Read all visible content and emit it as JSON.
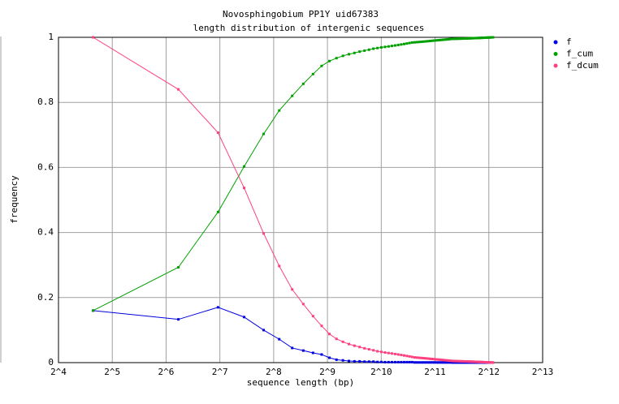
{
  "chart_data": {
    "type": "line",
    "title": "Novosphingobium PP1Y uid67383",
    "subtitle": "length distribution of intergenic sequences",
    "x_label": "sequence length (bp)",
    "y_label": "frequency",
    "log_x": true,
    "log_base": 2,
    "grid": true,
    "legend": "right",
    "markers": true,
    "xlim": [
      16,
      8192
    ],
    "xticks": [
      {
        "value": 16,
        "label": "2^4"
      },
      {
        "value": 32,
        "label": "2^5"
      },
      {
        "value": 64,
        "label": "2^6"
      },
      {
        "value": 128,
        "label": "2^7"
      },
      {
        "value": 256,
        "label": "2^8"
      },
      {
        "value": 512,
        "label": "2^9"
      },
      {
        "value": 1024,
        "label": "2^10"
      },
      {
        "value": 2048,
        "label": "2^11"
      },
      {
        "value": 4096,
        "label": "2^12"
      },
      {
        "value": 8192,
        "label": "2^13"
      }
    ],
    "ylim": [
      0,
      1
    ],
    "yticks": [
      0,
      0.2,
      0.4,
      0.6,
      0.8,
      1
    ],
    "x": [
      25,
      75,
      125,
      175,
      225,
      275,
      325,
      375,
      425,
      475,
      525,
      575,
      625,
      675,
      725,
      775,
      825,
      875,
      925,
      975,
      1025,
      1075,
      1125,
      1175,
      1225,
      1275,
      1325,
      1375,
      1425,
      1475,
      1525,
      1575,
      1625,
      1675,
      1725,
      1775,
      1825,
      1875,
      1925,
      1975,
      2025,
      2075,
      2125,
      2175,
      2225,
      2275,
      2325,
      2375,
      2425,
      2475,
      2525,
      2575,
      2625,
      2675,
      2725,
      2775,
      2825,
      2875,
      2925,
      2975,
      3025,
      3075,
      3125,
      3175,
      3225,
      3275,
      3325,
      3375,
      3425,
      3475,
      3525,
      3575,
      3625,
      3675,
      3725,
      3775,
      3825,
      3875,
      3925,
      3975,
      4025,
      4075,
      4125,
      4175,
      4225,
      4275,
      4325
    ],
    "series": [
      {
        "name": "f",
        "color": "#0000e0",
        "values": [
          0.16,
          0.133,
          0.17,
          0.14,
          0.1,
          0.072,
          0.045,
          0.037,
          0.03,
          0.025,
          0.015,
          0.009,
          0.007,
          0.005,
          0.004,
          0.004,
          0.003,
          0.003,
          0.003,
          0.002,
          0.002,
          0.0015,
          0.0015,
          0.0015,
          0.0015,
          0.0015,
          0.0015,
          0.0015,
          0.0015,
          0.0015,
          0.0015,
          0.0006,
          0.0006,
          0.0006,
          0.0006,
          0.0006,
          0.0006,
          0.0006,
          0.0006,
          0.0006,
          0.0006,
          0.0005,
          0.0005,
          0.0005,
          0.0005,
          0.0005,
          0.0005,
          0.0005,
          0.0005,
          0.0005,
          0.0005,
          0.00014,
          0.00014,
          0.00014,
          0.00014,
          0.00014,
          0.00014,
          0.00014,
          0.00014,
          0.00014,
          0.00014,
          0.00014,
          0.00014,
          0.00014,
          0.00014,
          0.00014,
          0.00014,
          0.00014,
          0.00014,
          0.00014,
          0.00014,
          0.00014,
          0.00014,
          0.00014,
          0.00014,
          0.00014,
          0.00014,
          0.00014,
          0.00014,
          0.00014,
          0.00014,
          0.00014,
          0.00014,
          0.00014,
          0.00014,
          0.00014,
          0.00014
        ]
      },
      {
        "name": "f_cum",
        "color": "#00a000",
        "values": [
          0.16,
          0.293,
          0.463,
          0.603,
          0.703,
          0.775,
          0.82,
          0.857,
          0.887,
          0.912,
          0.927,
          0.936,
          0.943,
          0.948,
          0.952,
          0.956,
          0.959,
          0.962,
          0.965,
          0.967,
          0.969,
          0.9705,
          0.972,
          0.9735,
          0.975,
          0.9765,
          0.978,
          0.9795,
          0.981,
          0.9825,
          0.984,
          0.9846,
          0.9852,
          0.9858,
          0.9864,
          0.987,
          0.9876,
          0.9882,
          0.9888,
          0.9894,
          0.99,
          0.9905,
          0.991,
          0.9915,
          0.992,
          0.9925,
          0.993,
          0.9935,
          0.994,
          0.9945,
          0.995,
          0.9951,
          0.9953,
          0.9954,
          0.9956,
          0.9957,
          0.9958,
          0.996,
          0.9961,
          0.9963,
          0.9964,
          0.9965,
          0.9967,
          0.9968,
          0.997,
          0.9971,
          0.9972,
          0.9974,
          0.9975,
          0.9977,
          0.9978,
          0.9979,
          0.9981,
          0.9982,
          0.9984,
          0.9985,
          0.9986,
          0.9988,
          0.9989,
          0.9991,
          0.9992,
          0.9993,
          0.9995,
          0.9996,
          0.9998,
          0.9999,
          1
        ]
      },
      {
        "name": "f_dcum",
        "color": "#ff4080",
        "values": [
          1,
          0.84,
          0.707,
          0.537,
          0.397,
          0.297,
          0.225,
          0.18,
          0.143,
          0.113,
          0.088,
          0.073,
          0.064,
          0.057,
          0.052,
          0.048,
          0.044,
          0.041,
          0.038,
          0.035,
          0.033,
          0.031,
          0.0295,
          0.028,
          0.0265,
          0.025,
          0.0235,
          0.022,
          0.0205,
          0.019,
          0.0175,
          0.016,
          0.0154,
          0.0148,
          0.0142,
          0.0136,
          0.013,
          0.0124,
          0.0118,
          0.0112,
          0.0106,
          0.01,
          0.0095,
          0.009,
          0.0085,
          0.008,
          0.0075,
          0.007,
          0.0065,
          0.006,
          0.0055,
          0.005,
          0.0049,
          0.0047,
          0.0046,
          0.0044,
          0.0043,
          0.0042,
          0.004,
          0.0039,
          0.0037,
          0.0036,
          0.0035,
          0.0033,
          0.0032,
          0.003,
          0.0029,
          0.0028,
          0.0026,
          0.0025,
          0.0023,
          0.0022,
          0.0021,
          0.0019,
          0.0018,
          0.0016,
          0.0015,
          0.0014,
          0.0012,
          0.0011,
          0.0009,
          0.0008,
          0.0007,
          0.0005,
          0.0004,
          0.0002,
          0.0001
        ]
      }
    ]
  }
}
